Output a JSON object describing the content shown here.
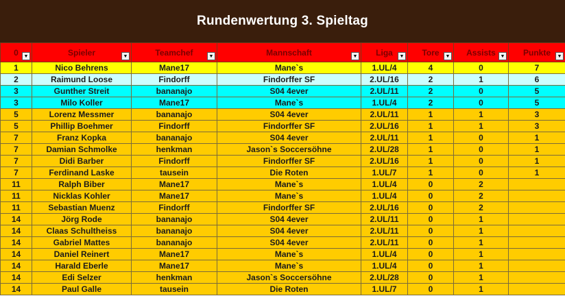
{
  "title": "Rundenwertung 3. Spieltag",
  "colors": {
    "banner": "#3a1e0c",
    "header": "#ff0000",
    "yellow": "#ffff00",
    "light": "#ccffff",
    "cyan": "#00ffff",
    "orange": "#ffcc00"
  },
  "columns": [
    "0",
    "Spieler",
    "Teamchef",
    "Mannschaft",
    "Liga",
    "Tore",
    "Assists",
    "Punkte"
  ],
  "filter_icon": "dropdown-arrow-icon",
  "rows": [
    {
      "rank": "1",
      "player": "Nico Behrens",
      "teamchef": "Mane17",
      "team": "Mane`s",
      "liga": "1.UL/4",
      "tore": "4",
      "assists": "0",
      "punkte": "7",
      "color": "yellow"
    },
    {
      "rank": "2",
      "player": "Raimund Loose",
      "teamchef": "Findorff",
      "team": "Findorffer SF",
      "liga": "2.UL/16",
      "tore": "2",
      "assists": "1",
      "punkte": "6",
      "color": "light"
    },
    {
      "rank": "3",
      "player": "Gunther Streit",
      "teamchef": "bananajo",
      "team": "S04 4ever",
      "liga": "2.UL/11",
      "tore": "2",
      "assists": "0",
      "punkte": "5",
      "color": "cyan"
    },
    {
      "rank": "3",
      "player": "Milo Koller",
      "teamchef": "Mane17",
      "team": "Mane`s",
      "liga": "1.UL/4",
      "tore": "2",
      "assists": "0",
      "punkte": "5",
      "color": "cyan"
    },
    {
      "rank": "5",
      "player": "Lorenz Messmer",
      "teamchef": "bananajo",
      "team": "S04 4ever",
      "liga": "2.UL/11",
      "tore": "1",
      "assists": "1",
      "punkte": "3",
      "color": "orange"
    },
    {
      "rank": "5",
      "player": "Phillip Boehmer",
      "teamchef": "Findorff",
      "team": "Findorffer SF",
      "liga": "2.UL/16",
      "tore": "1",
      "assists": "1",
      "punkte": "3",
      "color": "orange"
    },
    {
      "rank": "7",
      "player": "Franz Kopka",
      "teamchef": "bananajo",
      "team": "S04 4ever",
      "liga": "2.UL/11",
      "tore": "1",
      "assists": "0",
      "punkte": "1",
      "color": "orange"
    },
    {
      "rank": "7",
      "player": "Damian Schmolke",
      "teamchef": "henkman",
      "team": "Jason`s Soccersöhne",
      "liga": "2.UL/28",
      "tore": "1",
      "assists": "0",
      "punkte": "1",
      "color": "orange"
    },
    {
      "rank": "7",
      "player": "Didi Barber",
      "teamchef": "Findorff",
      "team": "Findorffer SF",
      "liga": "2.UL/16",
      "tore": "1",
      "assists": "0",
      "punkte": "1",
      "color": "orange"
    },
    {
      "rank": "7",
      "player": "Ferdinand Laske",
      "teamchef": "tausein",
      "team": "Die Roten",
      "liga": "1.UL/7",
      "tore": "1",
      "assists": "0",
      "punkte": "1",
      "color": "orange"
    },
    {
      "rank": "11",
      "player": "Ralph Biber",
      "teamchef": "Mane17",
      "team": "Mane`s",
      "liga": "1.UL/4",
      "tore": "0",
      "assists": "2",
      "punkte": "",
      "color": "orange"
    },
    {
      "rank": "11",
      "player": "Nicklas Kohler",
      "teamchef": "Mane17",
      "team": "Mane`s",
      "liga": "1.UL/4",
      "tore": "0",
      "assists": "2",
      "punkte": "",
      "color": "orange"
    },
    {
      "rank": "11",
      "player": "Sebastian Muenz",
      "teamchef": "Findorff",
      "team": "Findorffer SF",
      "liga": "2.UL/16",
      "tore": "0",
      "assists": "2",
      "punkte": "",
      "color": "orange"
    },
    {
      "rank": "14",
      "player": "Jörg Rode",
      "teamchef": "bananajo",
      "team": "S04 4ever",
      "liga": "2.UL/11",
      "tore": "0",
      "assists": "1",
      "punkte": "",
      "color": "orange"
    },
    {
      "rank": "14",
      "player": "Claas Schultheiss",
      "teamchef": "bananajo",
      "team": "S04 4ever",
      "liga": "2.UL/11",
      "tore": "0",
      "assists": "1",
      "punkte": "",
      "color": "orange"
    },
    {
      "rank": "14",
      "player": "Gabriel Mattes",
      "teamchef": "bananajo",
      "team": "S04 4ever",
      "liga": "2.UL/11",
      "tore": "0",
      "assists": "1",
      "punkte": "",
      "color": "orange"
    },
    {
      "rank": "14",
      "player": "Daniel Reinert",
      "teamchef": "Mane17",
      "team": "Mane`s",
      "liga": "1.UL/4",
      "tore": "0",
      "assists": "1",
      "punkte": "",
      "color": "orange"
    },
    {
      "rank": "14",
      "player": "Harald Eberle",
      "teamchef": "Mane17",
      "team": "Mane`s",
      "liga": "1.UL/4",
      "tore": "0",
      "assists": "1",
      "punkte": "",
      "color": "orange"
    },
    {
      "rank": "14",
      "player": "Edi Selzer",
      "teamchef": "henkman",
      "team": "Jason`s Soccersöhne",
      "liga": "2.UL/28",
      "tore": "0",
      "assists": "1",
      "punkte": "",
      "color": "orange"
    },
    {
      "rank": "14",
      "player": "Paul Galle",
      "teamchef": "tausein",
      "team": "Die Roten",
      "liga": "1.UL/7",
      "tore": "0",
      "assists": "1",
      "punkte": "",
      "color": "orange"
    }
  ]
}
